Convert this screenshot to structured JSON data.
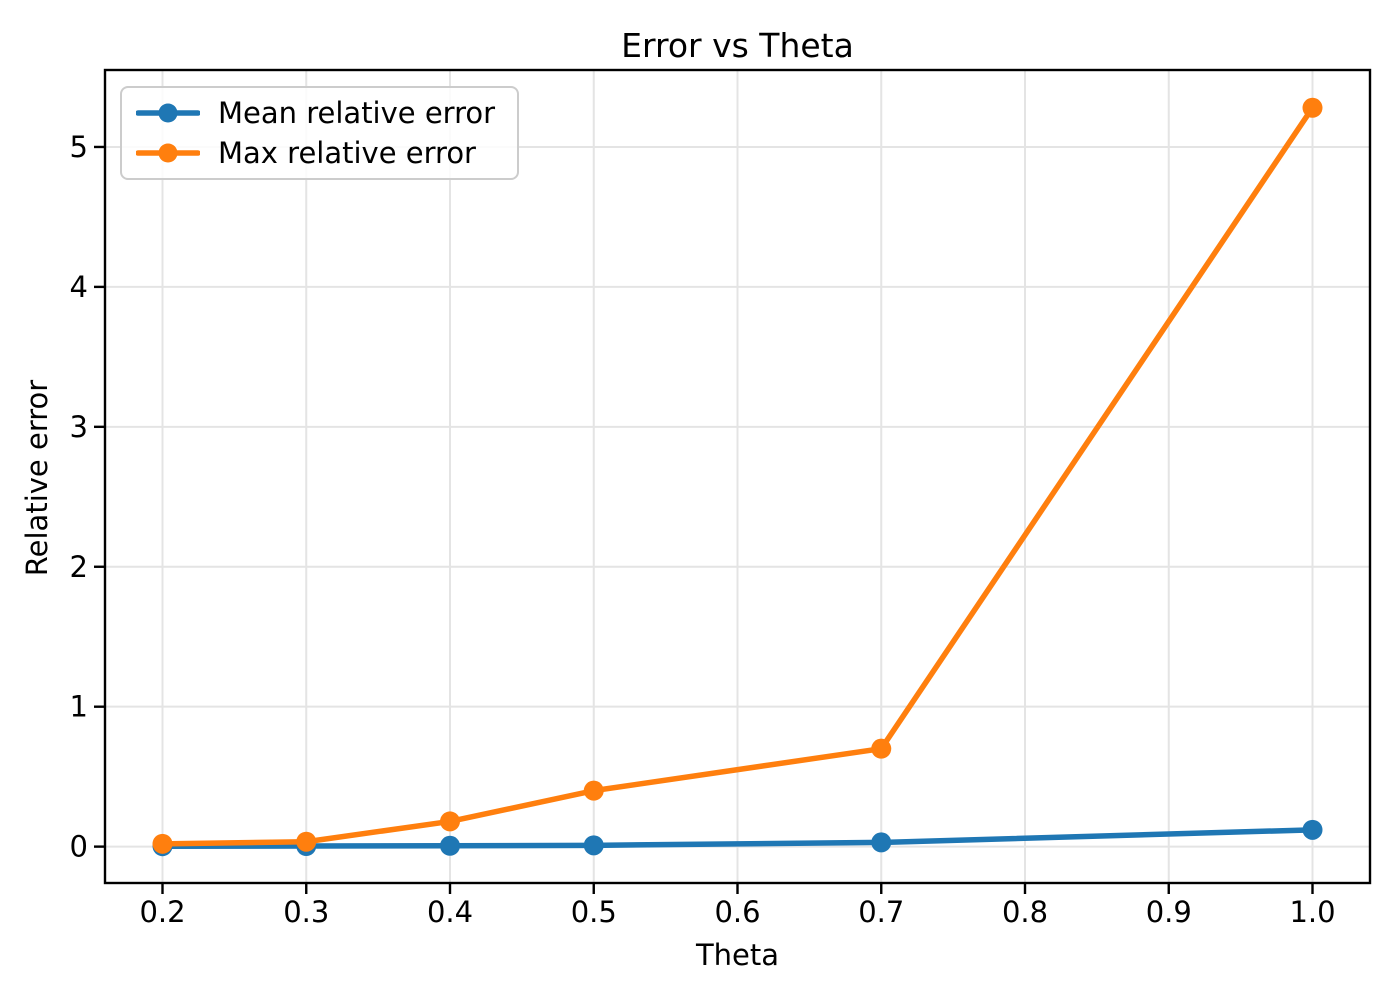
{
  "figure": {
    "background": "#ffffff"
  },
  "chart_data": {
    "type": "line",
    "title": "Error vs Theta",
    "xlabel": "Theta",
    "ylabel": "Relative error",
    "x": [
      0.2,
      0.3,
      0.4,
      0.5,
      0.7,
      1.0
    ],
    "series": [
      {
        "name": "Mean relative error",
        "color": "#1f77b4",
        "values": [
          0.003,
          0.004,
          0.006,
          0.009,
          0.03,
          0.12
        ]
      },
      {
        "name": "Max relative error",
        "color": "#ff7f0e",
        "values": [
          0.02,
          0.035,
          0.18,
          0.4,
          0.7,
          5.28
        ]
      }
    ],
    "xticks": [
      0.2,
      0.3,
      0.4,
      0.5,
      0.6,
      0.7,
      0.8,
      0.9,
      1.0
    ],
    "xticklabels": [
      "0.2",
      "0.3",
      "0.4",
      "0.5",
      "0.6",
      "0.7",
      "0.8",
      "0.9",
      "1.0"
    ],
    "yticks": [
      0,
      1,
      2,
      3,
      4,
      5
    ],
    "yticklabels": [
      "0",
      "1",
      "2",
      "3",
      "4",
      "5"
    ],
    "xlim": [
      0.16,
      1.04
    ],
    "ylim": [
      -0.26,
      5.55
    ],
    "grid": true,
    "legend_position": "upper left",
    "marker": "circle"
  },
  "colors": {
    "grid": "#e4e4e4",
    "spine": "#000000",
    "tick": "#000000",
    "text": "#000000",
    "legend_border": "#cccccc",
    "legend_background": "#ffffff"
  }
}
